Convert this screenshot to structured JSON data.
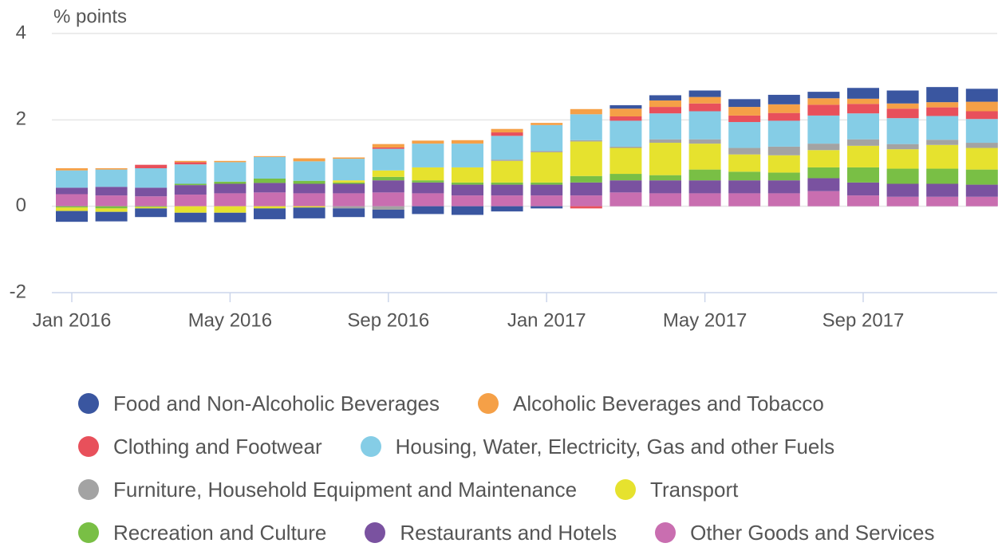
{
  "chart_data": {
    "type": "stacked-bar",
    "y_label": "% points",
    "categories": [
      "Jan 2016",
      null,
      null,
      null,
      "May 2016",
      null,
      null,
      null,
      "Sep 2016",
      null,
      null,
      null,
      "Jan 2017",
      null,
      null,
      null,
      "May 2017",
      null,
      null,
      null,
      "Sep 2017",
      null,
      null,
      null
    ],
    "ylim": [
      -2,
      4
    ],
    "yticks": [
      -2,
      0,
      2,
      4
    ],
    "grid": true,
    "series": [
      {
        "name": "Food and Non-Alcoholic Beverages",
        "color": "#3a56a0",
        "values": [
          -0.25,
          -0.22,
          -0.2,
          -0.22,
          -0.22,
          -0.25,
          -0.25,
          -0.2,
          -0.2,
          -0.18,
          -0.2,
          -0.12,
          -0.05,
          0,
          0.08,
          0.12,
          0.15,
          0.18,
          0.22,
          0.15,
          0.25,
          0.3,
          0.35,
          0.3
        ]
      },
      {
        "name": "Alcoholic Beverages and Tobacco",
        "color": "#f5a047",
        "values": [
          0.05,
          0.03,
          0,
          0.03,
          0.03,
          0.02,
          0.07,
          0.03,
          0.08,
          0.07,
          0.08,
          0.08,
          0.05,
          0.12,
          0.18,
          0.15,
          0.15,
          0.2,
          0.2,
          0.15,
          0.12,
          0.12,
          0.12,
          0.22
        ]
      },
      {
        "name": "Clothing and Footwear",
        "color": "#e8505b",
        "values": [
          0,
          0,
          0.08,
          0.05,
          0,
          0,
          0,
          0,
          0.03,
          0,
          0,
          0.08,
          0,
          -0.05,
          0.1,
          0.15,
          0.18,
          0.15,
          0.18,
          0.25,
          0.22,
          0.22,
          0.2,
          0.18
        ]
      },
      {
        "name": "Housing, Water, Electricity, Gas and other Fuels",
        "color": "#85cde6",
        "values": [
          0.4,
          0.4,
          0.45,
          0.45,
          0.45,
          0.5,
          0.45,
          0.5,
          0.5,
          0.55,
          0.55,
          0.55,
          0.6,
          0.6,
          0.6,
          0.6,
          0.65,
          0.6,
          0.6,
          0.65,
          0.6,
          0.6,
          0.55,
          0.55
        ]
      },
      {
        "name": "Furniture, Household Equipment and Maintenance",
        "color": "#a3a3a3",
        "values": [
          0,
          0,
          0,
          0,
          0,
          0,
          0,
          -0.05,
          -0.08,
          0,
          0,
          0.03,
          0.03,
          0.03,
          0.03,
          0.08,
          0.1,
          0.15,
          0.2,
          0.15,
          0.15,
          0.12,
          0.12,
          0.12
        ]
      },
      {
        "name": "Transport",
        "color": "#e6e22e",
        "values": [
          -0.08,
          -0.08,
          -0.03,
          -0.15,
          -0.15,
          -0.05,
          -0.03,
          0.05,
          0.15,
          0.3,
          0.35,
          0.5,
          0.7,
          0.8,
          0.6,
          0.75,
          0.6,
          0.4,
          0.4,
          0.4,
          0.5,
          0.45,
          0.55,
          0.5
        ]
      },
      {
        "name": "Recreation and Culture",
        "color": "#79bf45",
        "values": [
          -0.03,
          -0.05,
          -0.02,
          0.03,
          0.05,
          0.1,
          0.07,
          0.03,
          0.08,
          0.05,
          0.05,
          0.05,
          0.05,
          0.15,
          0.15,
          0.12,
          0.25,
          0.2,
          0.18,
          0.25,
          0.35,
          0.35,
          0.35,
          0.35
        ]
      },
      {
        "name": "Restaurants and Hotels",
        "color": "#7a52a0",
        "values": [
          0.15,
          0.2,
          0.2,
          0.22,
          0.22,
          0.22,
          0.22,
          0.22,
          0.28,
          0.25,
          0.25,
          0.25,
          0.25,
          0.3,
          0.28,
          0.3,
          0.3,
          0.3,
          0.3,
          0.3,
          0.3,
          0.3,
          0.3,
          0.28
        ]
      },
      {
        "name": "Other Goods and Services",
        "color": "#c96eb0",
        "values": [
          0.28,
          0.25,
          0.23,
          0.27,
          0.3,
          0.32,
          0.3,
          0.3,
          0.32,
          0.3,
          0.25,
          0.25,
          0.25,
          0.25,
          0.32,
          0.3,
          0.3,
          0.3,
          0.3,
          0.35,
          0.25,
          0.22,
          0.22,
          0.22
        ]
      }
    ]
  }
}
